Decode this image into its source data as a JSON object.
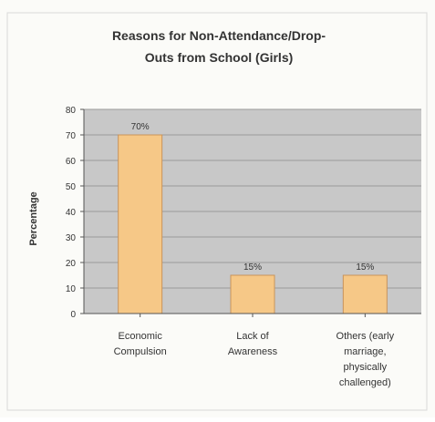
{
  "chart_data": {
    "type": "bar",
    "title_lines": [
      "Reasons for Non-Attendance/Drop-",
      "Outs from School (Girls)"
    ],
    "ylabel": "Percentage",
    "xlabel": "",
    "ylim": [
      0,
      80
    ],
    "yticks": [
      0,
      10,
      20,
      30,
      40,
      50,
      60,
      70,
      80
    ],
    "grid": true,
    "categories": [
      [
        "Economic",
        "Compulsion"
      ],
      [
        "Lack of",
        "Awareness"
      ],
      [
        "Others (early",
        "marriage,",
        "physically",
        "challenged)"
      ]
    ],
    "values": [
      70,
      15,
      15
    ],
    "data_labels": [
      "70%",
      "15%",
      "15%"
    ],
    "colors": {
      "bar_fill": "#f6c887",
      "bar_stroke": "#c9935a",
      "plot_bg": "#c8c8c8",
      "gridline": "#9a9a9a",
      "axis": "#555555",
      "text": "#333333",
      "frame": "#d9d9d9",
      "background": "#fbfbf8"
    }
  }
}
